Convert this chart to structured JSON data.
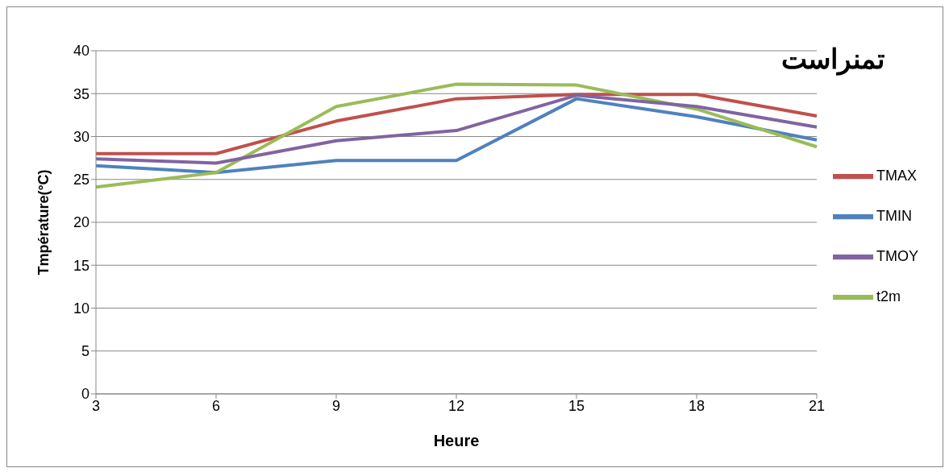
{
  "chart_data": {
    "type": "line",
    "title": "تمنراست",
    "xlabel": "Heure",
    "ylabel": "Tmpérature(°C)",
    "categories": [
      "3",
      "6",
      "9",
      "12",
      "15",
      "18",
      "21"
    ],
    "series": [
      {
        "name": "TMIN",
        "color": "#4f81bd",
        "values": [
          26.6,
          25.8,
          27.2,
          27.2,
          34.4,
          32.3,
          29.6
        ]
      },
      {
        "name": "TMAX",
        "color": "#c0504d",
        "values": [
          28.0,
          28.0,
          31.8,
          34.4,
          34.9,
          34.9,
          32.4
        ]
      },
      {
        "name": "t2m",
        "color": "#9bbb59",
        "values": [
          24.1,
          25.8,
          33.5,
          36.1,
          36.0,
          33.2,
          28.8
        ]
      },
      {
        "name": "TMOY",
        "color": "#8064a2",
        "values": [
          27.4,
          26.9,
          29.5,
          30.7,
          34.8,
          33.5,
          31.1
        ]
      }
    ],
    "ylim": [
      0,
      40
    ],
    "yticks": [
      0,
      5,
      10,
      15,
      20,
      25,
      30,
      35,
      40
    ],
    "grid": "y",
    "legend": "right",
    "marker": "none",
    "line_style": "solid"
  }
}
